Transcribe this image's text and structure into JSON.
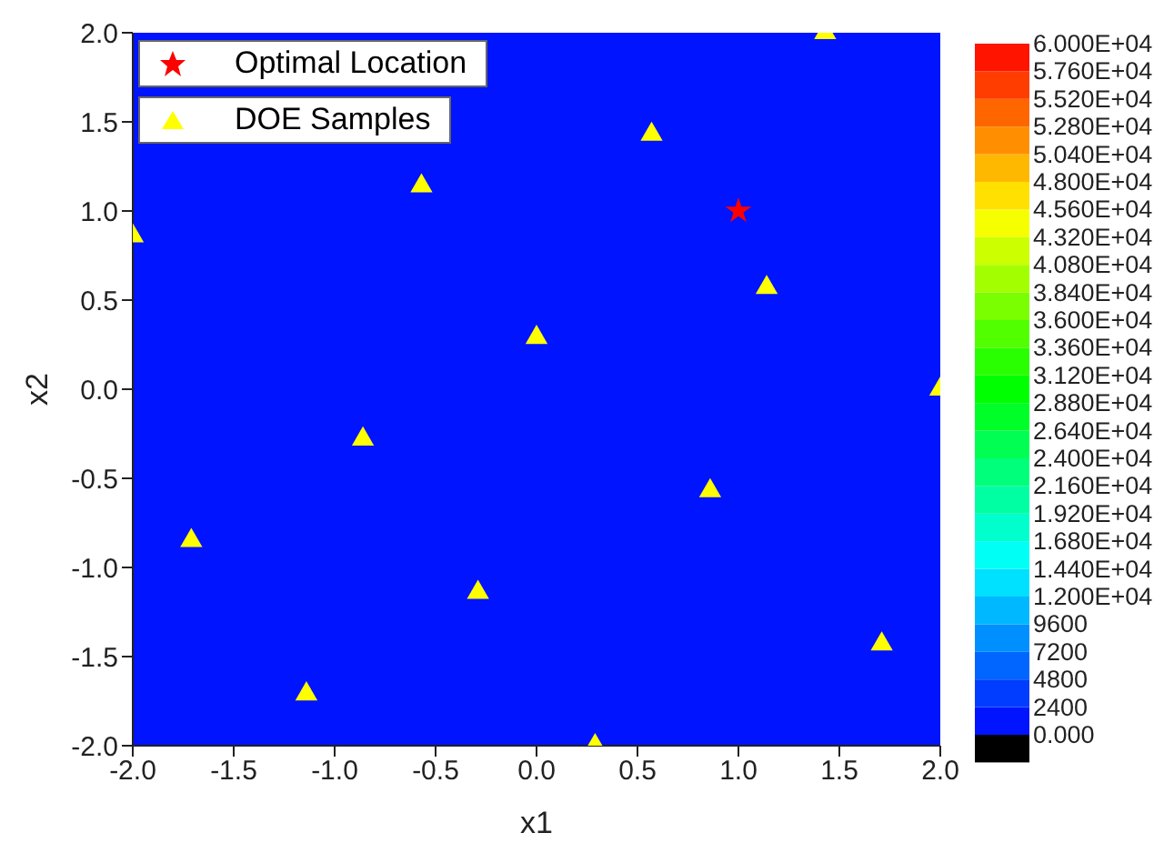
{
  "chart_data": {
    "type": "scatter",
    "xlabel": "x1",
    "ylabel": "x2",
    "xlim": [
      -2,
      2
    ],
    "ylim": [
      -2,
      2
    ],
    "xticks": [
      {
        "value": -2,
        "label": "-2.0"
      },
      {
        "value": -1.5,
        "label": "-1.5"
      },
      {
        "value": -1,
        "label": "-1.0"
      },
      {
        "value": -0.5,
        "label": "-0.5"
      },
      {
        "value": 0,
        "label": "0.0"
      },
      {
        "value": 0.5,
        "label": "0.5"
      },
      {
        "value": 1,
        "label": "1.0"
      },
      {
        "value": 1.5,
        "label": "1.5"
      },
      {
        "value": 2,
        "label": "2.0"
      }
    ],
    "yticks": [
      {
        "value": -2,
        "label": "-2.0"
      },
      {
        "value": -1.5,
        "label": "-1.5"
      },
      {
        "value": -1,
        "label": "-1.0"
      },
      {
        "value": -0.5,
        "label": "-0.5"
      },
      {
        "value": 0,
        "label": "0.0"
      },
      {
        "value": 0.5,
        "label": "0.5"
      },
      {
        "value": 1,
        "label": "1.0"
      },
      {
        "value": 1.5,
        "label": "1.5"
      },
      {
        "value": 2,
        "label": "2.0"
      }
    ],
    "clim": [
      0,
      60000
    ],
    "cticks": [
      {
        "value": 0,
        "label": "0.000"
      },
      2400,
      4800,
      7200,
      9600,
      {
        "value": 12000,
        "label": "1.200E+04"
      },
      {
        "value": 14400,
        "label": "1.440E+04"
      },
      {
        "value": 16800,
        "label": "1.680E+04"
      },
      {
        "value": 19200,
        "label": "1.920E+04"
      },
      {
        "value": 21600,
        "label": "2.160E+04"
      },
      {
        "value": 24000,
        "label": "2.400E+04"
      },
      {
        "value": 26400,
        "label": "2.640E+04"
      },
      {
        "value": 28800,
        "label": "2.880E+04"
      },
      {
        "value": 31200,
        "label": "3.120E+04"
      },
      {
        "value": 33600,
        "label": "3.360E+04"
      },
      {
        "value": 36000,
        "label": "3.600E+04"
      },
      {
        "value": 38400,
        "label": "3.840E+04"
      },
      {
        "value": 40800,
        "label": "4.080E+04"
      },
      {
        "value": 43200,
        "label": "4.320E+04"
      },
      {
        "value": 45600,
        "label": "4.560E+04"
      },
      {
        "value": 48000,
        "label": "4.800E+04"
      },
      {
        "value": 50400,
        "label": "5.040E+04"
      },
      {
        "value": 52800,
        "label": "5.280E+04"
      },
      {
        "value": 55200,
        "label": "5.520E+04"
      },
      {
        "value": 57600,
        "label": "5.760E+04"
      },
      {
        "value": 60000,
        "label": "6.000E+04"
      }
    ],
    "grid": false,
    "legend": "top left",
    "series": [
      {
        "name": "Optimal Location",
        "color": "#ff0000",
        "marker": "star",
        "x": [
          1.0
        ],
        "values": [
          1.0
        ]
      },
      {
        "name": "DOE Samples",
        "color": "#ffff00",
        "marker": "triangle",
        "x": [
          -2.0,
          -1.71,
          -1.14,
          -0.86,
          -0.57,
          -0.29,
          0.0,
          0.29,
          0.57,
          0.86,
          1.14,
          1.43,
          1.71,
          2.0
        ],
        "values": [
          0.86,
          -0.85,
          -1.71,
          -0.28,
          1.14,
          -1.14,
          0.29,
          -2.0,
          1.43,
          -0.57,
          0.57,
          2.0,
          -1.43,
          0.0
        ]
      }
    ]
  }
}
